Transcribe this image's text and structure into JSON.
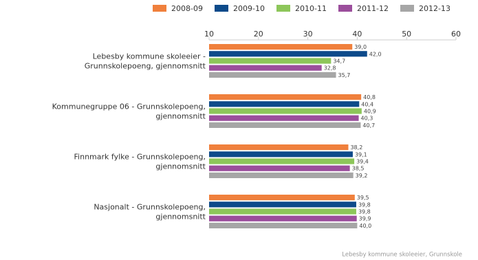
{
  "chart_data": {
    "type": "bar",
    "orientation": "horizontal",
    "categories": [
      [
        "Lebesby kommune skoleeier -",
        "Grunnskolepoeng, gjennomsnitt"
      ],
      [
        "Kommunegruppe 06 - Grunnskolepoeng,",
        "gjennomsnitt"
      ],
      [
        "Finnmark fylke - Grunnskolepoeng,",
        "gjennomsnitt"
      ],
      [
        "Nasjonalt - Grunnskolepoeng,",
        "gjennomsnitt"
      ]
    ],
    "series": [
      {
        "name": "2008-09",
        "color": "#f0803c",
        "values": [
          39.0,
          40.8,
          38.2,
          39.5
        ],
        "value_labels": [
          "39,0",
          "40,8",
          "38,2",
          "39,5"
        ]
      },
      {
        "name": "2009-10",
        "color": "#0d4a8a",
        "values": [
          42.0,
          40.4,
          39.1,
          39.8
        ],
        "value_labels": [
          "42,0",
          "40,4",
          "39,1",
          "39,8"
        ]
      },
      {
        "name": "2010-11",
        "color": "#8dc65a",
        "values": [
          34.7,
          40.9,
          39.4,
          39.8
        ],
        "value_labels": [
          "34,7",
          "40,9",
          "39,4",
          "39,8"
        ]
      },
      {
        "name": "2011-12",
        "color": "#9b4e9c",
        "values": [
          32.8,
          40.3,
          38.5,
          39.9
        ],
        "value_labels": [
          "32,8",
          "40,3",
          "38,5",
          "39,9"
        ]
      },
      {
        "name": "2012-13",
        "color": "#a6a6a6",
        "values": [
          35.7,
          40.7,
          39.2,
          40.0
        ],
        "value_labels": [
          "35,7",
          "40,7",
          "39,2",
          "40,0"
        ]
      }
    ],
    "xlim": [
      10,
      60
    ],
    "xticks": [
      10,
      20,
      30,
      40,
      50,
      60
    ],
    "grid": false,
    "legend": "top",
    "source": "Lebesby kommune skoleeier, Grunnskole"
  }
}
